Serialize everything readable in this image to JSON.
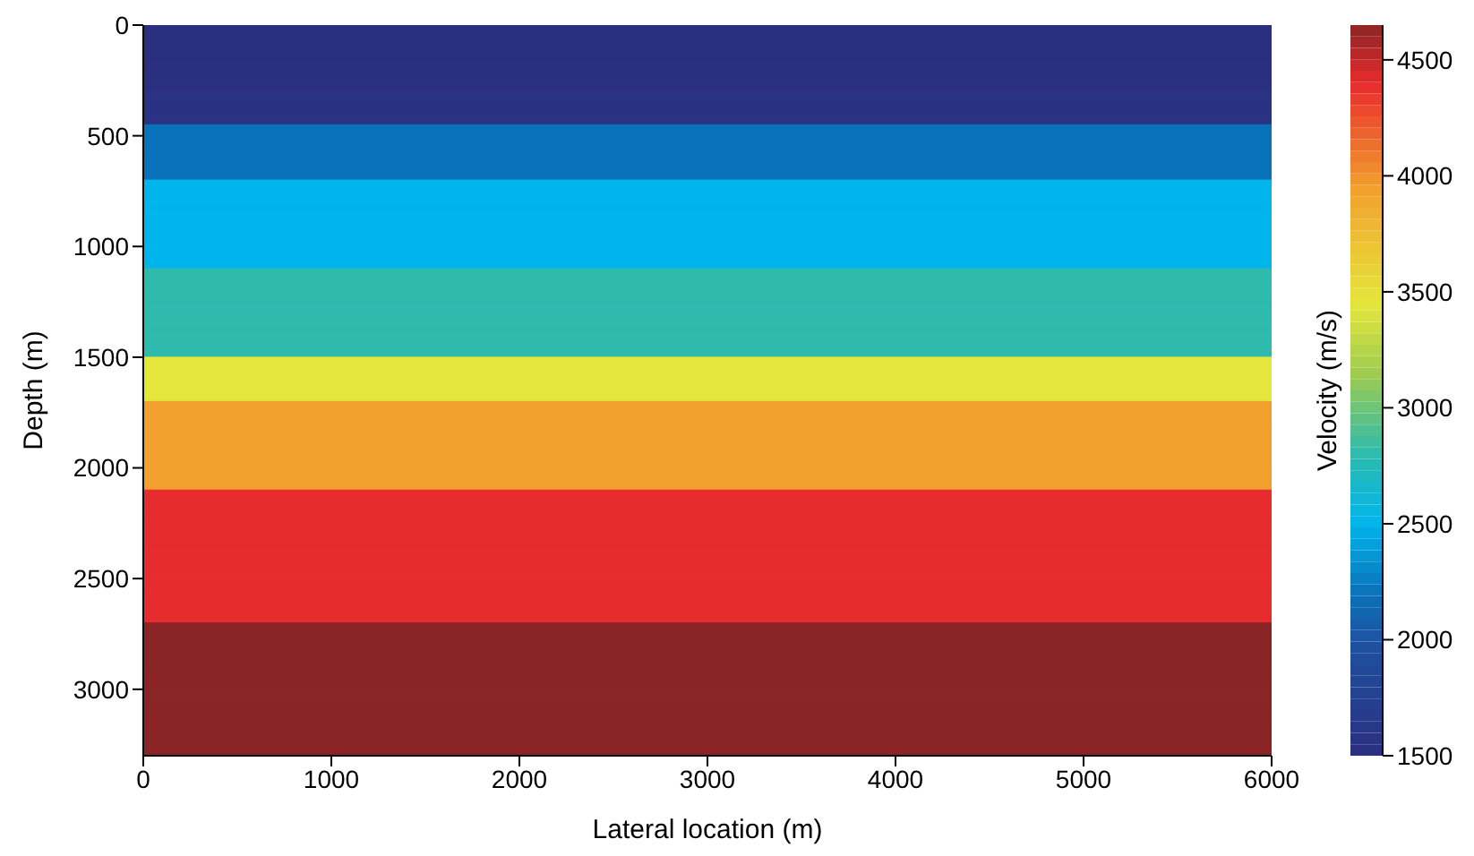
{
  "chart_data": {
    "type": "heatmap",
    "xlabel": "Lateral location (m)",
    "ylabel": "Depth (m)",
    "clabel": "Velocity (m/s)",
    "cells": [
      [
        1500
      ],
      [
        1500
      ],
      [
        1500
      ],
      [
        1500
      ],
      [
        1500
      ],
      [
        1500
      ],
      [
        1550
      ],
      [
        1550
      ],
      [
        1550
      ],
      [
        2200
      ],
      [
        2200
      ],
      [
        2200
      ],
      [
        2200
      ],
      [
        2200
      ],
      [
        2500
      ],
      [
        2500
      ],
      [
        2500
      ],
      [
        2500
      ],
      [
        2500
      ],
      [
        2500
      ],
      [
        2500
      ],
      [
        2500
      ],
      [
        2800
      ],
      [
        2800
      ],
      [
        2800
      ],
      [
        2800
      ],
      [
        2800
      ],
      [
        2800
      ],
      [
        2800
      ],
      [
        2800
      ],
      [
        3450
      ],
      [
        3450
      ],
      [
        3450
      ],
      [
        3450
      ],
      [
        3950
      ],
      [
        3950
      ],
      [
        3950
      ],
      [
        3950
      ],
      [
        3950
      ],
      [
        3950
      ],
      [
        3950
      ],
      [
        3950
      ],
      [
        4400
      ],
      [
        4400
      ],
      [
        4400
      ],
      [
        4400
      ],
      [
        4400
      ],
      [
        4400
      ],
      [
        4400
      ],
      [
        4400
      ],
      [
        4400
      ],
      [
        4400
      ],
      [
        4400
      ],
      [
        4400
      ],
      [
        4650
      ],
      [
        4650
      ],
      [
        4650
      ],
      [
        4650
      ],
      [
        4650
      ],
      [
        4650
      ],
      [
        4650
      ],
      [
        4650
      ],
      [
        4650
      ],
      [
        4650
      ],
      [
        4650
      ],
      [
        4650
      ]
    ],
    "xlim": [
      0,
      6000
    ],
    "xticks": [
      0,
      1000,
      2000,
      3000,
      4000,
      5000,
      6000
    ],
    "ylim": [
      3300,
      0
    ],
    "yticks": [
      0,
      500,
      1000,
      1500,
      2000,
      2500,
      3000
    ],
    "clim": [
      1500,
      4650
    ],
    "cticks": [
      1500,
      2000,
      2500,
      3000,
      3500,
      4000,
      4500
    ]
  }
}
